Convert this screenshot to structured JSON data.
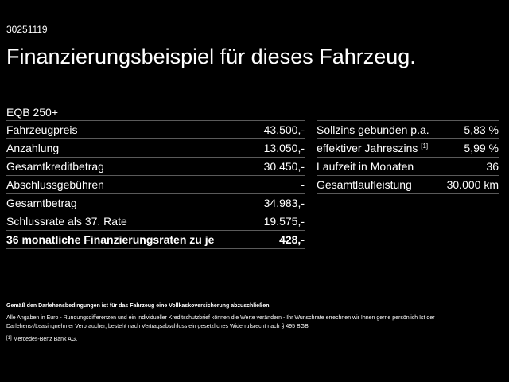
{
  "reference_number": "30251119",
  "title": "Finanzierungsbeispiel für dieses Fahrzeug.",
  "model": "EQB 250+",
  "left_table": [
    {
      "label": "Fahrzeugpreis",
      "value": "43.500,-"
    },
    {
      "label": "Anzahlung",
      "value": "13.050,-"
    },
    {
      "label": "Gesamtkreditbetrag",
      "value": "30.450,-"
    },
    {
      "label": "Abschlussgebühren",
      "value": "-"
    },
    {
      "label": "Gesamtbetrag",
      "value": "34.983,-"
    },
    {
      "label": "Schlussrate als 37. Rate",
      "value": "19.575,-"
    },
    {
      "label": "36 monatliche Finanzierungsraten zu je",
      "value": "428,-"
    }
  ],
  "right_table": [
    {
      "label": "Sollzins gebunden p.a.",
      "value": "5,83 %"
    },
    {
      "label": "effektiver Jahreszins",
      "footnote_ref": "[1]",
      "value": "5,99 %"
    },
    {
      "label": "Laufzeit in Monaten",
      "value": "36"
    },
    {
      "label": "Gesamtlaufleistung",
      "value": "30.000 km"
    }
  ],
  "notes": {
    "insurance": "Gemäß den Darlehensbedingungen ist für das Fahrzeug eine Vollkaskoversicherung abzuschließen.",
    "disclaimer": "Alle Angaben in Euro - Rundungsdifferenzen und ein individueller Kreditschutzbrief können die Werte verändern - Ihr Wunschrate errechnen wir Ihnen gerne persönlich Ist der Darlehens-/Leasingnehmer Verbraucher, besteht nach Vertragsabschluss ein gesetzliches Widerrufsrecht nach § 495 BGB",
    "footnote_mark": "[1]",
    "footnote_text": "Mercedes-Benz Bank AG."
  }
}
